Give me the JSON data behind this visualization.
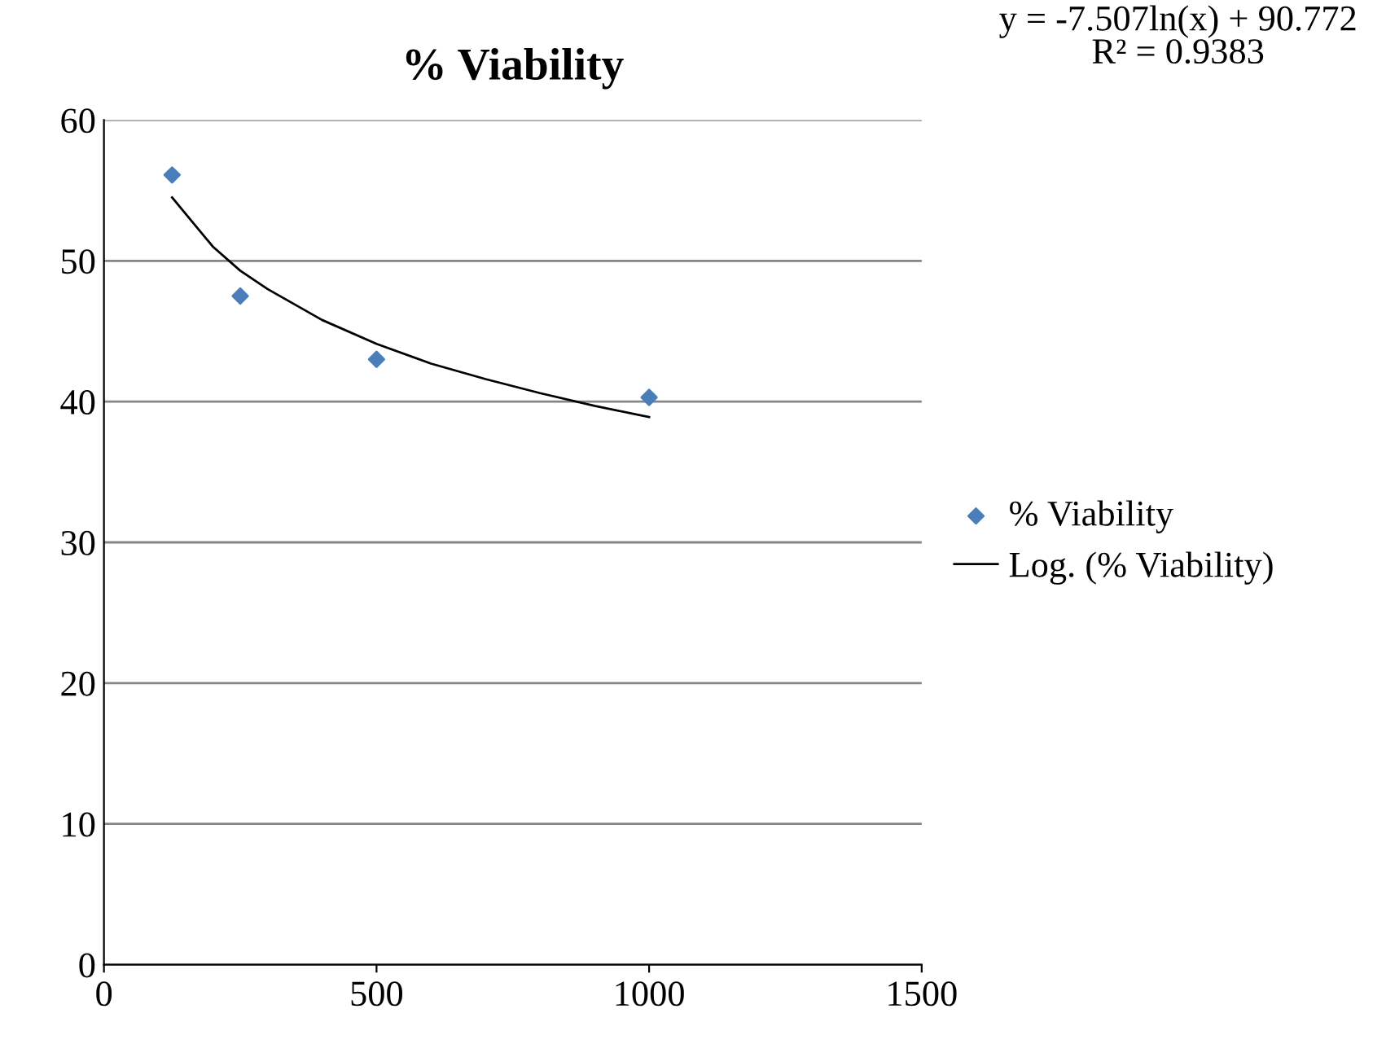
{
  "chart_data": {
    "type": "scatter",
    "title": "% Viability",
    "series": [
      {
        "name": "% Viability",
        "color": "#4a7ebb",
        "marker": "diamond",
        "x": [
          125,
          250,
          500,
          1000
        ],
        "values": [
          56.1,
          47.5,
          43.0,
          40.3
        ]
      },
      {
        "name": "Log. (% Viability)",
        "type": "line",
        "color": "#000000",
        "marker": "none",
        "line_style": "solid",
        "x": [
          125,
          200,
          250,
          300,
          400,
          500,
          600,
          700,
          800,
          900,
          1000
        ],
        "values": [
          54.5,
          51.0,
          49.3,
          48.0,
          45.8,
          44.1,
          42.7,
          41.6,
          40.6,
          39.7,
          38.9
        ]
      }
    ],
    "xlim": [
      0,
      1500
    ],
    "xticks": [
      0,
      500,
      1000,
      1500
    ],
    "ylim": [
      0,
      60
    ],
    "yticks": [
      0,
      10,
      20,
      30,
      40,
      50,
      60
    ],
    "grid": "y",
    "legend": "right",
    "annotations": [
      "y = -7.507ln(x) + 90.772\nR² = 0.9383"
    ]
  }
}
